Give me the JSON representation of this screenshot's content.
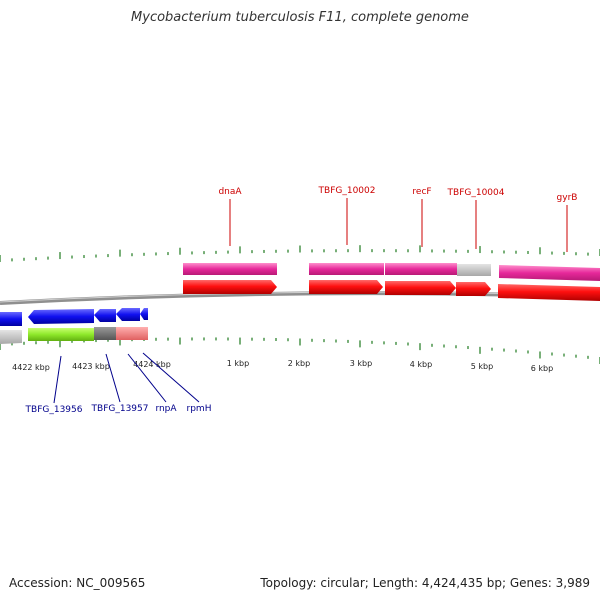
{
  "title": "Mycobacterium tuberculosis F11, complete genome",
  "footer": {
    "accession": "Accession: NC_009565",
    "topology": "Topology: circular; Length: 4,424,435 bp; Genes: 3,989"
  },
  "colors": {
    "forward_gene": "#ee2020",
    "forward_cds": "#e62fa0",
    "reverse_gene": "#1f1fe6",
    "backbone": "#8f8f8f",
    "tick": "#1f7a1f",
    "label_forward": "#cc0000",
    "label_reverse": "#00008b"
  },
  "forward_labels": [
    "dnaA",
    "TBFG_10002",
    "recF",
    "TBFG_10004",
    "gyrB"
  ],
  "reverse_labels": [
    "TBFG_13956",
    "TBFG_13957",
    "rnpA",
    "rpmH"
  ],
  "scale_labels": [
    "4422 kbp",
    "4423 kbp",
    "4424 kbp",
    "1 kbp",
    "2 kbp",
    "3 kbp",
    "4 kbp",
    "5 kbp",
    "6 kbp"
  ]
}
